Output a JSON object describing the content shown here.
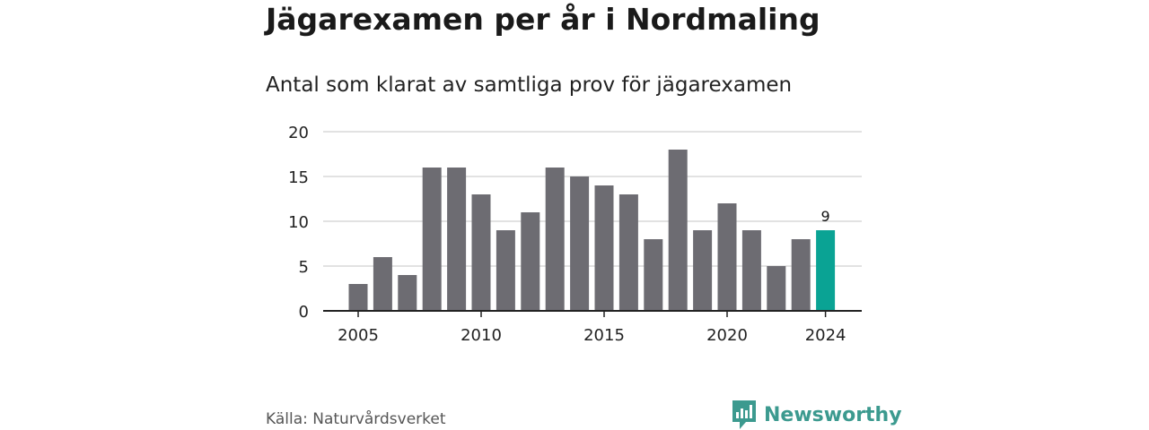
{
  "header": {
    "title": "Jägarexamen per år i Nordmaling",
    "subtitle": "Antal som klarat av samtliga prov för jägarexamen"
  },
  "footer": {
    "source": "Källa: Naturvårdsverket",
    "brand": "Newsworthy",
    "brand_icon": "newsworthy-logo-icon"
  },
  "colors": {
    "bar": "#6d6c72",
    "highlight": "#0aa394",
    "grid": "#d9d9d9",
    "axis": "#222222",
    "brand": "#3c9a8f"
  },
  "chart_data": {
    "type": "bar",
    "x": [
      2005,
      2006,
      2007,
      2008,
      2009,
      2010,
      2011,
      2012,
      2013,
      2014,
      2015,
      2016,
      2017,
      2018,
      2019,
      2020,
      2021,
      2022,
      2023,
      2024
    ],
    "values": [
      3,
      6,
      4,
      16,
      16,
      13,
      9,
      11,
      16,
      15,
      14,
      13,
      8,
      18,
      9,
      12,
      9,
      5,
      8,
      9
    ],
    "x_ticks": [
      2005,
      2010,
      2015,
      2020,
      2024
    ],
    "y_ticks": [
      0,
      5,
      10,
      15,
      20
    ],
    "ylim": [
      0,
      20
    ],
    "highlight": {
      "x": 2024,
      "label": "9"
    },
    "grid": true,
    "legend": "none"
  }
}
